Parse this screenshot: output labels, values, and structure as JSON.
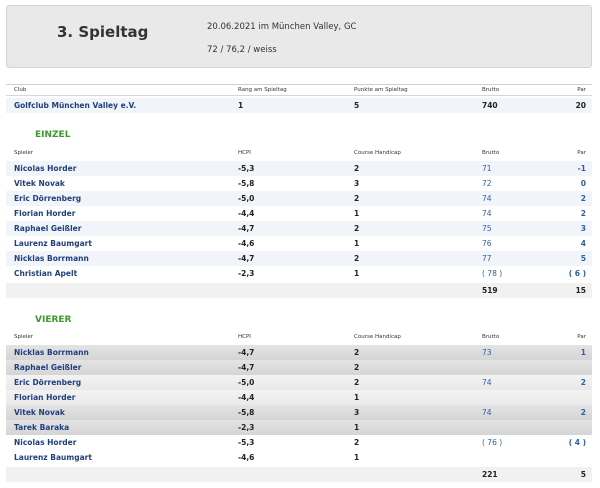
{
  "header": {
    "title": "3. Spieltag",
    "date_location": "20.06.2021 im München Valley, GC",
    "course_rating": "72 / 76,2 / weiss"
  },
  "club_table": {
    "headers": [
      "Club",
      "Rang am Spieltag",
      "Punkte am Spieltag",
      "Brutto",
      "Par"
    ],
    "rows": [
      {
        "club": "Golfclub München Valley e.V.",
        "rang": "1",
        "punkte": "5",
        "brutto": "740",
        "par": "20"
      }
    ]
  },
  "einzel": {
    "title": "EINZEL",
    "headers": [
      "Spieler",
      "HCPI",
      "Course Handicap",
      "Brutto",
      "Par"
    ],
    "rows": [
      {
        "spieler": "Nicolas Horder",
        "hcpi": "-5,3",
        "ch": "2",
        "brutto": "71",
        "par": "-1"
      },
      {
        "spieler": "Vitek Novak",
        "hcpi": "-5,8",
        "ch": "3",
        "brutto": "72",
        "par": "0"
      },
      {
        "spieler": "Eric Dörrenberg",
        "hcpi": "-5,0",
        "ch": "2",
        "brutto": "74",
        "par": "2"
      },
      {
        "spieler": "Florian Horder",
        "hcpi": "-4,4",
        "ch": "1",
        "brutto": "74",
        "par": "2"
      },
      {
        "spieler": "Raphael Geißler",
        "hcpi": "-4,7",
        "ch": "2",
        "brutto": "75",
        "par": "3"
      },
      {
        "spieler": "Laurenz Baumgart",
        "hcpi": "-4,6",
        "ch": "1",
        "brutto": "76",
        "par": "4"
      },
      {
        "spieler": "Nicklas Borrmann",
        "hcpi": "-4,7",
        "ch": "2",
        "brutto": "77",
        "par": "5"
      },
      {
        "spieler": "Christian Apelt",
        "hcpi": "-2,3",
        "ch": "1",
        "brutto": "( 78 )",
        "par": "( 6 )"
      }
    ],
    "total_brutto": "519",
    "total_par": "15"
  },
  "vierer": {
    "title": "VIERER",
    "headers": [
      "Spieler",
      "HCPI",
      "Course Handicap",
      "Brutto",
      "Par"
    ],
    "rows": [
      {
        "spieler": "Nicklas Borrmann",
        "hcpi": "-4,7",
        "ch": "2",
        "brutto": "73",
        "par": "1"
      },
      {
        "spieler": "Raphael Geißler",
        "hcpi": "-4,7",
        "ch": "2",
        "brutto": "",
        "par": ""
      },
      {
        "spieler": "Eric Dörrenberg",
        "hcpi": "-5,0",
        "ch": "2",
        "brutto": "74",
        "par": "2"
      },
      {
        "spieler": "Florian Horder",
        "hcpi": "-4,4",
        "ch": "1",
        "brutto": "",
        "par": ""
      },
      {
        "spieler": "Vitek Novak",
        "hcpi": "-5,8",
        "ch": "3",
        "brutto": "74",
        "par": "2"
      },
      {
        "spieler": "Tarek Baraka",
        "hcpi": "-2,3",
        "ch": "1",
        "brutto": "",
        "par": ""
      },
      {
        "spieler": "Nicolas Horder",
        "hcpi": "-5,3",
        "ch": "2",
        "brutto": "( 76 )",
        "par": "( 4 )"
      },
      {
        "spieler": "Laurenz Baumgart",
        "hcpi": "-4,6",
        "ch": "1",
        "brutto": "",
        "par": ""
      }
    ],
    "total_brutto": "221",
    "total_par": "5"
  }
}
